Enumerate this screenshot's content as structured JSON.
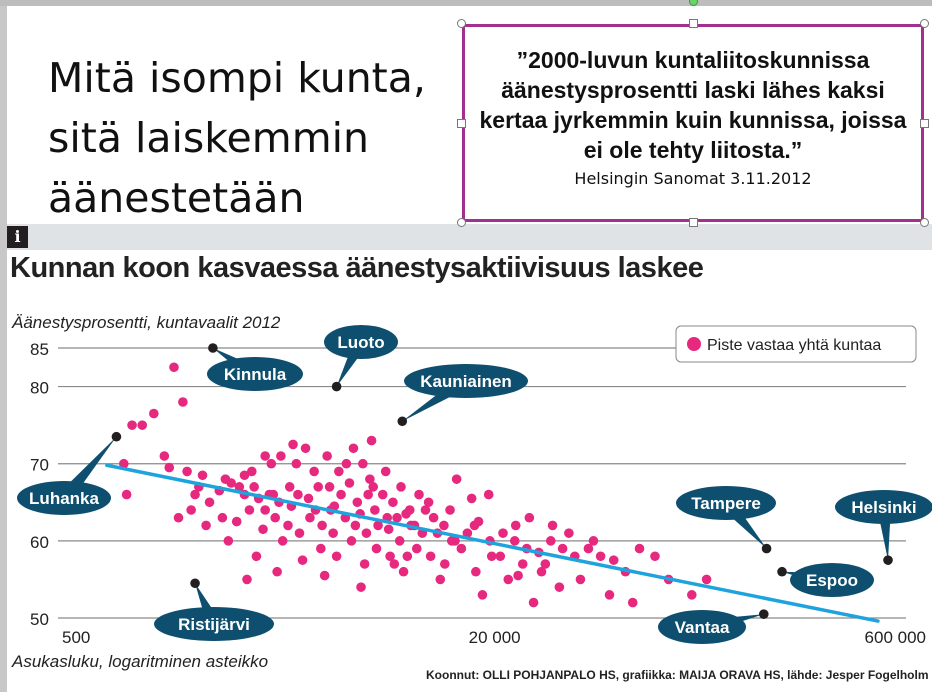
{
  "slide": {
    "title": "Mitä isompi kunta, sitä laiskemmin äänestetään",
    "quote": "”2000-luvun kuntaliitoskunnissa äänestysprosentti laski lähes kaksi kertaa jyrkemmin kuin kunnissa, joissa ei ole tehty liitosta.”",
    "quote_source": "Helsingin Sanomat 3.11.2012"
  },
  "graphic": {
    "info_icon_label": "i",
    "credits": "Koonnut: OLLI POHJANPALO HS, grafiikka: MAIJA ORAVA HS, lähde: Jesper Fogelholm"
  },
  "colors": {
    "point": "#e6287f",
    "highlight": "#231f20",
    "trend": "#1fa3dc",
    "callout": "#0e4f6f",
    "quote_border": "#a2308f",
    "band": "#dfe3e5"
  },
  "icons": {
    "info": "info-icon",
    "legend_marker": "legend-dot-icon"
  },
  "chart_data": {
    "type": "scatter",
    "title": "Kunnan koon kasvaessa äänestysaktiivisuus laskee",
    "ylabel": "Äänestysprosentti, kuntavaalit 2012",
    "xlabel": "Asukasluku, logaritminen asteikko",
    "x_scale": "log",
    "xlim": [
      500,
      600000
    ],
    "ylim": [
      50,
      85
    ],
    "x_ticks": [
      500,
      20000,
      600000
    ],
    "x_tick_labels": [
      "500",
      "20 000",
      "600 000"
    ],
    "y_ticks": [
      50,
      60,
      70,
      80,
      85
    ],
    "y_tick_labels": [
      "50",
      "60",
      "70",
      "80",
      "85"
    ],
    "grid": true,
    "legend": {
      "position": "top-right",
      "label": "Piste vastaa yhtä kuntaa"
    },
    "trend_line": {
      "from": [
        700,
        69.8
      ],
      "to": [
        550000,
        49.6
      ]
    },
    "labeled_points": [
      {
        "name": "Kinnula",
        "x": 1750,
        "y": 85.0
      },
      {
        "name": "Luoto",
        "x": 5100,
        "y": 80.0
      },
      {
        "name": "Kauniainen",
        "x": 9000,
        "y": 75.5
      },
      {
        "name": "Luhanka",
        "x": 760,
        "y": 73.5
      },
      {
        "name": "Ristijärvi",
        "x": 1500,
        "y": 54.5
      },
      {
        "name": "Tampere",
        "x": 210000,
        "y": 59.0
      },
      {
        "name": "Espoo",
        "x": 240000,
        "y": 56.0
      },
      {
        "name": "Helsinki",
        "x": 600000,
        "y": 57.5
      },
      {
        "name": "Vantaa",
        "x": 205000,
        "y": 50.5
      }
    ],
    "points": [
      [
        870,
        75
      ],
      [
        950,
        75
      ],
      [
        810,
        70
      ],
      [
        830,
        66
      ],
      [
        1050,
        76.5
      ],
      [
        1250,
        82.5
      ],
      [
        1350,
        78
      ],
      [
        1150,
        71
      ],
      [
        1400,
        69
      ],
      [
        1200,
        69.5
      ],
      [
        1600,
        68.5
      ],
      [
        1950,
        68
      ],
      [
        2200,
        67
      ],
      [
        2450,
        69
      ],
      [
        2900,
        70
      ],
      [
        2750,
        71
      ],
      [
        3150,
        71
      ],
      [
        3600,
        70
      ],
      [
        3900,
        72
      ],
      [
        4200,
        69
      ],
      [
        4700,
        71
      ],
      [
        5200,
        69
      ],
      [
        5900,
        72
      ],
      [
        6400,
        70
      ],
      [
        6900,
        73
      ],
      [
        1500,
        66
      ],
      [
        1700,
        65
      ],
      [
        1850,
        66.5
      ],
      [
        2050,
        67.5
      ],
      [
        2300,
        66
      ],
      [
        2600,
        65.5
      ],
      [
        2500,
        67
      ],
      [
        2850,
        66
      ],
      [
        3100,
        65
      ],
      [
        3400,
        67
      ],
      [
        3650,
        66
      ],
      [
        4000,
        65.5
      ],
      [
        4350,
        67
      ],
      [
        4850,
        64
      ],
      [
        5300,
        66
      ],
      [
        5700,
        67.5
      ],
      [
        6100,
        65
      ],
      [
        6700,
        66
      ],
      [
        7100,
        64
      ],
      [
        7600,
        66
      ],
      [
        8300,
        65
      ],
      [
        8900,
        67
      ],
      [
        9600,
        64
      ],
      [
        10400,
        66
      ],
      [
        11300,
        65
      ],
      [
        1450,
        64
      ],
      [
        1650,
        62
      ],
      [
        1900,
        63
      ],
      [
        2150,
        62.5
      ],
      [
        2400,
        64
      ],
      [
        2700,
        61.5
      ],
      [
        3000,
        63
      ],
      [
        3350,
        62
      ],
      [
        3700,
        61
      ],
      [
        4050,
        63
      ],
      [
        4500,
        62
      ],
      [
        4950,
        61
      ],
      [
        5500,
        63
      ],
      [
        6000,
        62
      ],
      [
        6600,
        61
      ],
      [
        7300,
        62
      ],
      [
        8000,
        61.5
      ],
      [
        8800,
        60
      ],
      [
        9700,
        62
      ],
      [
        10700,
        61
      ],
      [
        11800,
        63
      ],
      [
        12900,
        62
      ],
      [
        14200,
        60
      ],
      [
        15800,
        61
      ],
      [
        17400,
        62.5
      ],
      [
        19200,
        60
      ],
      [
        21500,
        61
      ],
      [
        23800,
        60
      ],
      [
        26400,
        59
      ],
      [
        29300,
        58.5
      ],
      [
        32500,
        60
      ],
      [
        36000,
        59
      ],
      [
        40000,
        58
      ],
      [
        45000,
        59
      ],
      [
        50000,
        58
      ],
      [
        56000,
        57.5
      ],
      [
        62000,
        56
      ],
      [
        70000,
        59
      ],
      [
        80000,
        58
      ],
      [
        2000,
        60
      ],
      [
        2550,
        58
      ],
      [
        3200,
        60
      ],
      [
        3800,
        57.5
      ],
      [
        4450,
        59
      ],
      [
        5100,
        58
      ],
      [
        5800,
        60
      ],
      [
        6500,
        57
      ],
      [
        7200,
        59
      ],
      [
        8100,
        58
      ],
      [
        9100,
        56
      ],
      [
        10200,
        59
      ],
      [
        11500,
        58
      ],
      [
        13000,
        57
      ],
      [
        15000,
        59
      ],
      [
        17000,
        56
      ],
      [
        19500,
        58
      ],
      [
        22500,
        55
      ],
      [
        25500,
        57
      ],
      [
        30000,
        56
      ],
      [
        35000,
        54
      ],
      [
        42000,
        55
      ],
      [
        54000,
        53
      ],
      [
        66000,
        52
      ],
      [
        90000,
        55
      ],
      [
        110000,
        53
      ],
      [
        125000,
        55
      ],
      [
        2350,
        55
      ],
      [
        3050,
        56
      ],
      [
        4600,
        55.5
      ],
      [
        6300,
        54
      ],
      [
        8400,
        57
      ],
      [
        12500,
        55
      ],
      [
        18000,
        53
      ],
      [
        28000,
        52
      ],
      [
        1300,
        63
      ],
      [
        1550,
        67
      ],
      [
        2750,
        64
      ],
      [
        3450,
        64.5
      ],
      [
        4250,
        64
      ],
      [
        5000,
        64.5
      ],
      [
        6250,
        63.5
      ],
      [
        7900,
        63
      ],
      [
        9300,
        63.5
      ],
      [
        11000,
        64
      ],
      [
        13600,
        64
      ],
      [
        16400,
        65.5
      ],
      [
        19000,
        66
      ],
      [
        14400,
        68
      ],
      [
        16800,
        62
      ],
      [
        24000,
        62
      ],
      [
        27000,
        63
      ],
      [
        33000,
        62
      ],
      [
        38000,
        61
      ],
      [
        47000,
        60
      ],
      [
        6800,
        68
      ],
      [
        7800,
        69
      ],
      [
        4800,
        67
      ],
      [
        5550,
        70
      ],
      [
        3500,
        72.5
      ],
      [
        2950,
        66
      ],
      [
        2300,
        68.5
      ],
      [
        7000,
        67
      ],
      [
        8600,
        63
      ],
      [
        10000,
        62
      ],
      [
        12200,
        61
      ],
      [
        13800,
        60
      ],
      [
        9400,
        58
      ],
      [
        21000,
        58
      ],
      [
        31000,
        57
      ],
      [
        24500,
        55.5
      ]
    ]
  }
}
